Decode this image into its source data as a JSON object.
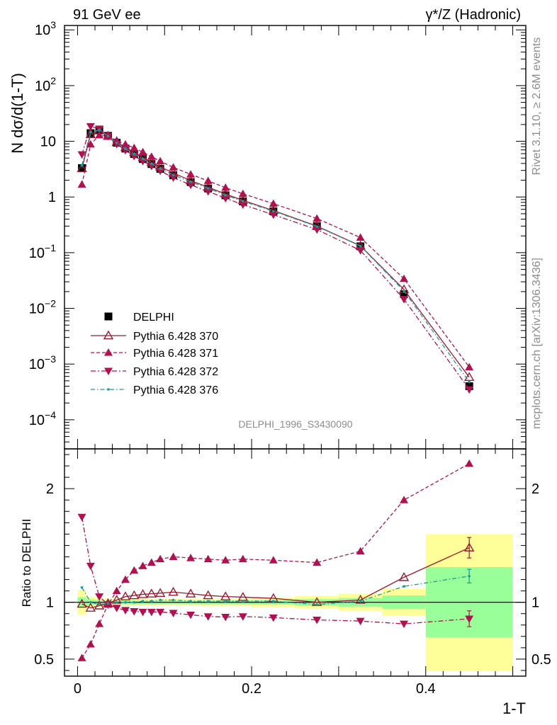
{
  "header": {
    "left": "91 GeV ee",
    "right": "γ*/Z (Hadronic)"
  },
  "side": {
    "rivet": "Rivet 3.1.10, ≥ 2.6M events",
    "mcplots": "mcplots.cern.ch [arXiv:1306.3436]"
  },
  "watermark": "DELPHI_1996_S3430090",
  "colors": {
    "data": "#000000",
    "p370": "#9b1b30",
    "p371": "#b0124f",
    "p372": "#b0124f",
    "p376": "#1a9c9c",
    "band_outer": "#ffff99",
    "band_inner": "#99ff99"
  },
  "chart_data": [
    {
      "type": "scatter",
      "panel": "main",
      "ylabel": "N dσ/d(1-T)",
      "yscale": "log",
      "ylim": [
        3e-05,
        1200
      ],
      "xlim": [
        -0.015,
        0.515
      ],
      "y_ticks": [
        {
          "v": 1000,
          "m": "10",
          "e": "3"
        },
        {
          "v": 100,
          "m": "10",
          "e": "2"
        },
        {
          "v": 10,
          "m": "10",
          "e": ""
        },
        {
          "v": 1,
          "m": "1",
          "e": ""
        },
        {
          "v": 0.1,
          "m": "10",
          "e": "−1"
        },
        {
          "v": 0.01,
          "m": "10",
          "e": "−2"
        },
        {
          "v": 0.001,
          "m": "10",
          "e": "−3"
        },
        {
          "v": 0.0001,
          "m": "10",
          "e": "−4"
        }
      ],
      "x": [
        0.005,
        0.015,
        0.025,
        0.035,
        0.045,
        0.055,
        0.065,
        0.075,
        0.085,
        0.095,
        0.11,
        0.13,
        0.15,
        0.17,
        0.19,
        0.225,
        0.275,
        0.325,
        0.375,
        0.45
      ],
      "series": [
        {
          "name": "DELPHI",
          "marker": "square",
          "values": [
            3.3,
            14.0,
            16.0,
            12.5,
            9.4,
            7.4,
            5.9,
            4.8,
            3.9,
            3.2,
            2.45,
            1.85,
            1.42,
            1.07,
            0.83,
            0.55,
            0.3,
            0.13,
            0.018,
            0.0004
          ]
        },
        {
          "name": "Pythia 6.428 370",
          "marker": "triangle-up-open",
          "line": "solid",
          "values": [
            3.25,
            13.3,
            15.5,
            12.4,
            9.6,
            7.8,
            6.3,
            5.1,
            4.2,
            3.5,
            2.7,
            1.97,
            1.5,
            1.13,
            0.87,
            0.57,
            0.3,
            0.133,
            0.0218,
            0.00058
          ]
        },
        {
          "name": "Pythia 6.428 371",
          "marker": "triangle-up",
          "line": "dashed",
          "values": [
            1.68,
            8.8,
            12.9,
            12.2,
            10.4,
            8.8,
            7.6,
            6.4,
            5.3,
            4.4,
            3.4,
            2.55,
            1.95,
            1.47,
            1.14,
            0.76,
            0.41,
            0.187,
            0.034,
            0.00088
          ]
        },
        {
          "name": "Pythia 6.428 372",
          "marker": "triangle-down",
          "line": "dash-dot",
          "values": [
            5.8,
            18.5,
            16.8,
            12.3,
            8.9,
            6.9,
            5.4,
            4.4,
            3.6,
            2.95,
            2.22,
            1.65,
            1.26,
            0.95,
            0.73,
            0.48,
            0.26,
            0.11,
            0.0146,
            0.00035
          ]
        },
        {
          "name": "Pythia 6.428 376",
          "marker": "dot",
          "line": "dash-dot",
          "values": [
            3.7,
            14.6,
            16.0,
            12.4,
            9.4,
            7.4,
            5.9,
            4.85,
            3.95,
            3.25,
            2.48,
            1.87,
            1.43,
            1.08,
            0.84,
            0.555,
            0.295,
            0.132,
            0.0205,
            0.00048
          ]
        }
      ]
    },
    {
      "type": "scatter",
      "panel": "ratio",
      "xlabel": "1-T",
      "ylabel": "Ratio to DELPHI",
      "ylim": [
        0.35,
        2.35
      ],
      "xlim": [
        -0.015,
        0.515
      ],
      "x_ticks": [
        0,
        0.2,
        0.4
      ],
      "x_tick_labels": [
        "0",
        "0.2",
        "0.4"
      ],
      "y_ticks": [
        2,
        1,
        0.5
      ],
      "y_tick_labels": [
        "2",
        "1",
        "0.5"
      ],
      "bin_edges": [
        0,
        0.01,
        0.02,
        0.03,
        0.04,
        0.05,
        0.06,
        0.07,
        0.08,
        0.09,
        0.1,
        0.12,
        0.14,
        0.16,
        0.18,
        0.2,
        0.25,
        0.3,
        0.35,
        0.4,
        0.5
      ],
      "band_outer": [
        0.11,
        0.05,
        0.04,
        0.035,
        0.03,
        0.03,
        0.03,
        0.03,
        0.03,
        0.03,
        0.03,
        0.03,
        0.035,
        0.035,
        0.035,
        0.04,
        0.055,
        0.075,
        0.12,
        0.6
      ],
      "band_inner": [
        0.045,
        0.025,
        0.02,
        0.018,
        0.015,
        0.015,
        0.015,
        0.015,
        0.015,
        0.015,
        0.015,
        0.015,
        0.018,
        0.018,
        0.018,
        0.02,
        0.028,
        0.038,
        0.06,
        0.31
      ],
      "x": [
        0.005,
        0.015,
        0.025,
        0.035,
        0.045,
        0.055,
        0.065,
        0.075,
        0.085,
        0.095,
        0.11,
        0.13,
        0.15,
        0.17,
        0.19,
        0.225,
        0.275,
        0.325,
        0.375,
        0.45
      ],
      "series": [
        {
          "name": "Pythia 6.428 370",
          "values": [
            0.985,
            0.95,
            0.97,
            0.99,
            1.02,
            1.05,
            1.06,
            1.07,
            1.075,
            1.08,
            1.09,
            1.075,
            1.06,
            1.05,
            1.045,
            1.035,
            1.0,
            1.02,
            1.22,
            1.48
          ],
          "err": [
            0,
            0,
            0,
            0,
            0,
            0,
            0,
            0,
            0,
            0,
            0,
            0,
            0,
            0,
            0,
            0,
            0,
            0,
            0,
            0.09
          ]
        },
        {
          "name": "Pythia 6.428 371",
          "values": [
            0.51,
            0.63,
            0.81,
            0.98,
            1.1,
            1.2,
            1.28,
            1.32,
            1.35,
            1.38,
            1.4,
            1.39,
            1.38,
            1.37,
            1.38,
            1.37,
            1.35,
            1.45,
            1.9,
            2.22
          ],
          "err": [
            0,
            0,
            0,
            0,
            0,
            0,
            0,
            0,
            0,
            0,
            0,
            0,
            0,
            0,
            0,
            0,
            0,
            0,
            0,
            0
          ]
        },
        {
          "name": "Pythia 6.428 372",
          "values": [
            1.75,
            1.32,
            1.05,
            0.98,
            0.95,
            0.93,
            0.92,
            0.915,
            0.915,
            0.915,
            0.905,
            0.89,
            0.875,
            0.87,
            0.875,
            0.865,
            0.845,
            0.835,
            0.81,
            0.855
          ],
          "err": [
            0,
            0,
            0,
            0,
            0,
            0,
            0,
            0,
            0,
            0,
            0,
            0,
            0,
            0,
            0,
            0,
            0,
            0,
            0,
            0.07
          ]
        },
        {
          "name": "Pythia 6.428 376",
          "values": [
            1.13,
            1.0,
            0.98,
            0.99,
            1.0,
            1.0,
            1.0,
            1.01,
            1.01,
            1.02,
            1.02,
            1.01,
            1.01,
            1.01,
            1.01,
            1.01,
            0.98,
            1.01,
            1.14,
            1.23
          ],
          "err": [
            0,
            0,
            0,
            0,
            0,
            0,
            0,
            0,
            0,
            0,
            0,
            0,
            0,
            0,
            0,
            0,
            0,
            0,
            0,
            0.06
          ]
        }
      ]
    }
  ]
}
